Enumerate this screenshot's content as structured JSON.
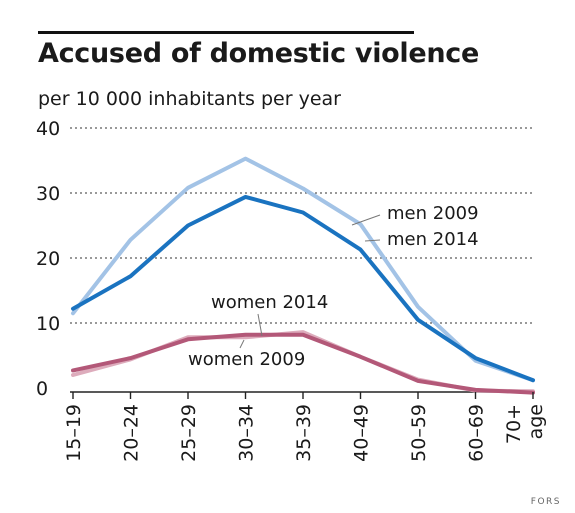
{
  "chart_data": {
    "type": "line",
    "title": "Accused of domestic violence",
    "subtitle": "per 10 000 inhabitants per year",
    "categories": [
      "15–19",
      "20–24",
      "25–29",
      "30–34",
      "35–39",
      "40–49",
      "50–59",
      "60–69",
      "70+\nage"
    ],
    "ylim": [
      0,
      40
    ],
    "yticks": [
      0,
      10,
      20,
      30,
      40
    ],
    "grid": true,
    "series": [
      {
        "name": "men 2009",
        "color": "#a3c3e6",
        "values": [
          11.5,
          22.8,
          30.8,
          35.3,
          30.7,
          25.2,
          12.5,
          4.2,
          1.2
        ]
      },
      {
        "name": "men 2014",
        "color": "#1a73c0",
        "values": [
          12.2,
          17.2,
          25.0,
          29.4,
          27.0,
          21.3,
          10.5,
          4.6,
          1.2
        ]
      },
      {
        "name": "women 2014",
        "color": "#b35878",
        "values": [
          2.7,
          4.6,
          7.5,
          8.2,
          8.2,
          4.8,
          1.1,
          -0.3,
          -0.7
        ]
      },
      {
        "name": "women 2009",
        "color": "#ddacbc",
        "values": [
          2.0,
          4.4,
          7.8,
          7.8,
          8.6,
          4.8,
          1.3,
          -0.4,
          -0.5
        ]
      }
    ]
  },
  "source": "FORS"
}
